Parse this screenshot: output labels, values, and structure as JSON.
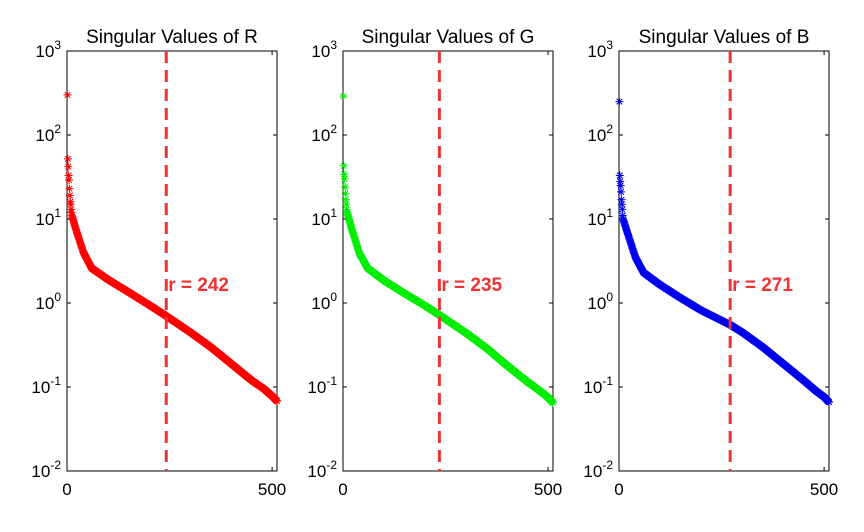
{
  "chart_data": [
    {
      "type": "scatter",
      "title": "Singular Values of R",
      "color": "#ff0000",
      "marker": "*",
      "x_range": [
        0,
        512
      ],
      "x_ticks": [
        0,
        500
      ],
      "y_scale": "log",
      "ylim": [
        0.01,
        1000
      ],
      "y_tick_values": [
        0.01,
        0.1,
        1,
        10,
        100,
        1000
      ],
      "y_tick_exponents": [
        "-2",
        "-1",
        "0",
        "1",
        "2",
        "3"
      ],
      "tick_base": "10",
      "leading_values": [
        300,
        52,
        42,
        33,
        29,
        23,
        19,
        16,
        15,
        13,
        12
      ],
      "curve_knots": [
        [
          10,
          12
        ],
        [
          20,
          8
        ],
        [
          40,
          4
        ],
        [
          60,
          2.6
        ],
        [
          100,
          1.9
        ],
        [
          150,
          1.35
        ],
        [
          200,
          0.95
        ],
        [
          242,
          0.7
        ],
        [
          300,
          0.45
        ],
        [
          350,
          0.3
        ],
        [
          400,
          0.19
        ],
        [
          450,
          0.12
        ],
        [
          480,
          0.095
        ],
        [
          500,
          0.078
        ],
        [
          512,
          0.068
        ]
      ],
      "rank_line_x": 242,
      "rank_label": "r = 242",
      "rank_line_color": "#ee3333"
    },
    {
      "type": "scatter",
      "title": "Singular Values of G",
      "color": "#00ee00",
      "marker": "*",
      "x_range": [
        0,
        512
      ],
      "x_ticks": [
        0,
        500
      ],
      "y_scale": "log",
      "ylim": [
        0.01,
        1000
      ],
      "y_tick_values": [
        0.01,
        0.1,
        1,
        10,
        100,
        1000
      ],
      "y_tick_exponents": [
        "-2",
        "-1",
        "0",
        "1",
        "2",
        "3"
      ],
      "tick_base": "10",
      "leading_values": [
        290,
        43,
        34,
        30,
        24,
        20,
        17,
        15,
        13,
        12
      ],
      "curve_knots": [
        [
          10,
          12
        ],
        [
          20,
          8
        ],
        [
          40,
          3.9
        ],
        [
          60,
          2.6
        ],
        [
          100,
          1.85
        ],
        [
          150,
          1.3
        ],
        [
          200,
          0.93
        ],
        [
          235,
          0.72
        ],
        [
          300,
          0.44
        ],
        [
          350,
          0.29
        ],
        [
          400,
          0.18
        ],
        [
          450,
          0.115
        ],
        [
          480,
          0.09
        ],
        [
          500,
          0.075
        ],
        [
          512,
          0.065
        ]
      ],
      "rank_line_x": 235,
      "rank_label": "r = 235",
      "rank_line_color": "#ee3333"
    },
    {
      "type": "scatter",
      "title": "Singular Values of B",
      "color": "#0000ee",
      "marker": "*",
      "x_range": [
        0,
        512
      ],
      "x_ticks": [
        0,
        500
      ],
      "y_scale": "log",
      "ylim": [
        0.01,
        1000
      ],
      "y_tick_values": [
        0.01,
        0.1,
        1,
        10,
        100,
        1000
      ],
      "y_tick_exponents": [
        "-2",
        "-1",
        "0",
        "1",
        "2",
        "3"
      ],
      "tick_base": "10",
      "leading_values": [
        250,
        33,
        28,
        25,
        21,
        17,
        15,
        13,
        11
      ],
      "curve_knots": [
        [
          10,
          10
        ],
        [
          20,
          7
        ],
        [
          40,
          3.5
        ],
        [
          60,
          2.3
        ],
        [
          100,
          1.65
        ],
        [
          150,
          1.15
        ],
        [
          200,
          0.82
        ],
        [
          271,
          0.55
        ],
        [
          300,
          0.45
        ],
        [
          350,
          0.3
        ],
        [
          400,
          0.19
        ],
        [
          450,
          0.12
        ],
        [
          480,
          0.09
        ],
        [
          500,
          0.076
        ],
        [
          512,
          0.066
        ]
      ],
      "rank_line_x": 271,
      "rank_label": "r = 271",
      "rank_line_color": "#ee3333"
    }
  ]
}
